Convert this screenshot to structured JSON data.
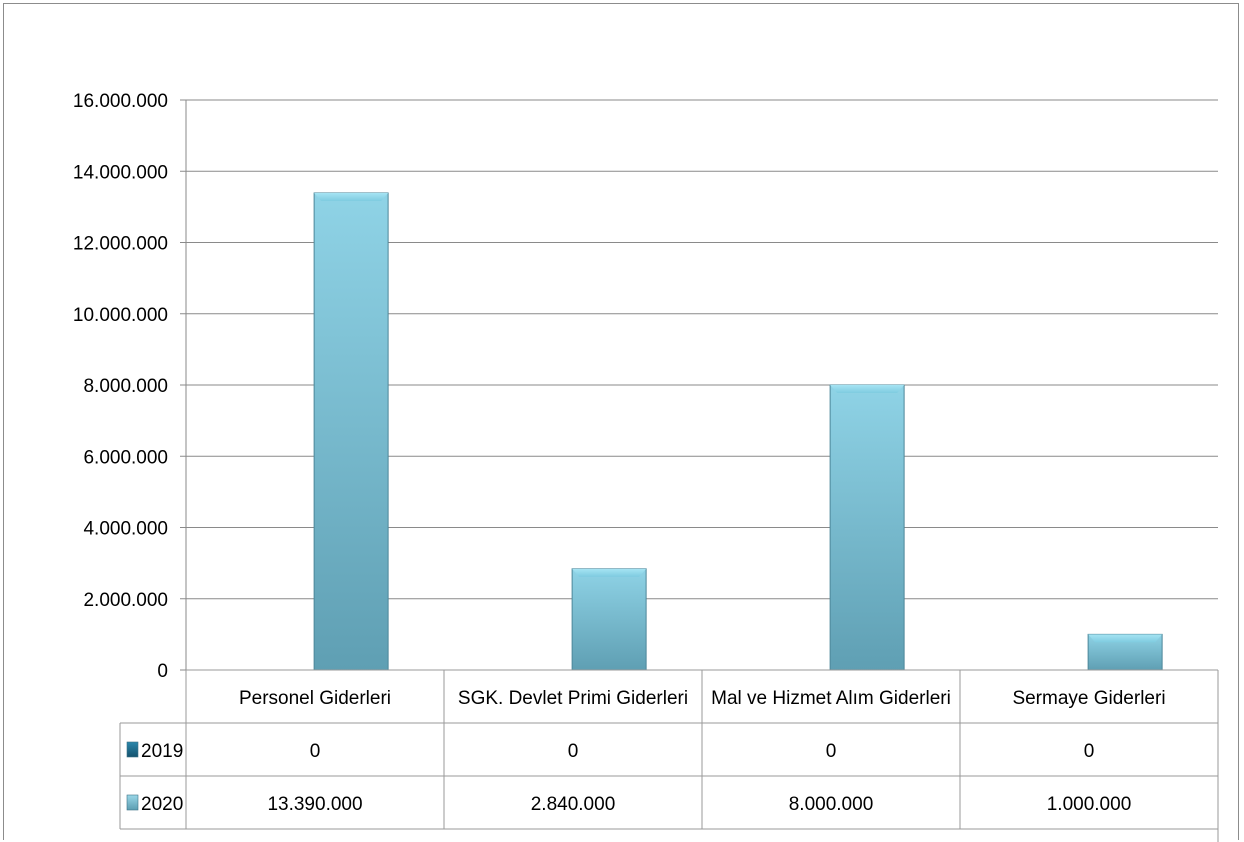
{
  "chart_data": {
    "type": "bar",
    "categories": [
      "Personel Giderleri",
      "SGK. Devlet Primi Giderleri",
      "Mal ve Hizmet Alım Giderleri",
      "Sermaye Giderleri"
    ],
    "series": [
      {
        "name": "2019",
        "values": [
          0,
          0,
          0,
          0
        ],
        "value_labels": [
          "0",
          "0",
          "0",
          "0"
        ],
        "color": "#1f6f93"
      },
      {
        "name": "2020",
        "values": [
          13390000,
          2840000,
          8000000,
          1000000
        ],
        "value_labels": [
          "13.390.000",
          "2.840.000",
          "8.000.000",
          "1.000.000"
        ],
        "color": "#7ec8dc"
      }
    ],
    "yticks": [
      "0",
      "2.000.000",
      "4.000.000",
      "6.000.000",
      "8.000.000",
      "10.000.000",
      "12.000.000",
      "14.000.000",
      "16.000.000"
    ],
    "ylim": [
      0,
      16000000
    ],
    "grid": true,
    "data_table": true
  }
}
